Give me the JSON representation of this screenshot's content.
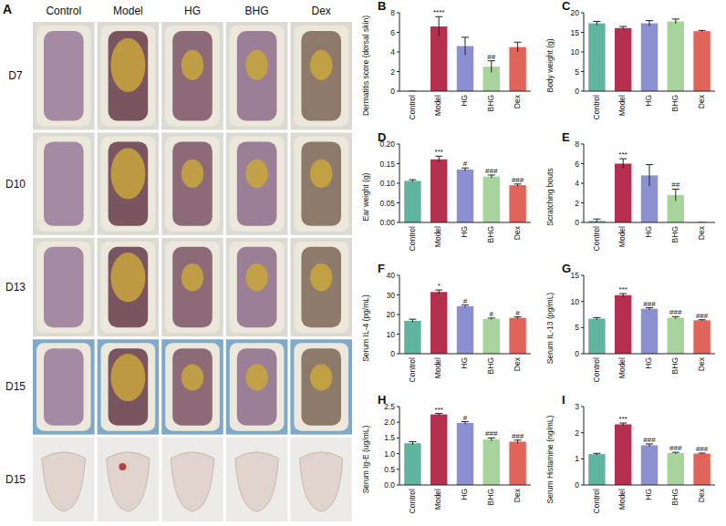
{
  "panel_a": {
    "panel": "A",
    "columns": [
      "Control",
      "Model",
      "HG",
      "BHG",
      "Dex"
    ],
    "rows": [
      "D7",
      "D10",
      "D13",
      "D15",
      "D15"
    ]
  },
  "chart_data": [
    {
      "type": "bar",
      "panel": "B",
      "ylabel": "Dermatitis score (dorsal skin)",
      "categories": [
        "Control",
        "Model",
        "HG",
        "BHG",
        "Dex"
      ],
      "values": [
        0,
        6.6,
        4.6,
        2.5,
        4.5
      ],
      "errors": [
        0,
        1.0,
        0.9,
        0.6,
        0.5
      ],
      "annotations": [
        null,
        "****",
        null,
        "##",
        null
      ],
      "colors": [
        "#5fb5a0",
        "#b5304f",
        "#8c8fd0",
        "#a7d49a",
        "#e0645a"
      ],
      "ylim": [
        0,
        8
      ],
      "yticks": [
        0,
        2,
        4,
        6,
        8
      ]
    },
    {
      "type": "bar",
      "panel": "C",
      "ylabel": "Body weight (g)",
      "categories": [
        "Control",
        "Model",
        "HG",
        "BHG",
        "Dex"
      ],
      "values": [
        17.3,
        16.1,
        17.3,
        17.8,
        15.3
      ],
      "errors": [
        0.5,
        0.4,
        0.7,
        0.6,
        0.2
      ],
      "annotations": [
        null,
        null,
        null,
        null,
        null
      ],
      "colors": [
        "#5fb5a0",
        "#b5304f",
        "#8c8fd0",
        "#a7d49a",
        "#e0645a"
      ],
      "ylim": [
        0,
        20
      ],
      "yticks": [
        0,
        5,
        10,
        15,
        20
      ]
    },
    {
      "type": "bar",
      "panel": "D",
      "ylabel": "Ear weight (g)",
      "categories": [
        "Control",
        "Model",
        "HG",
        "BHG",
        "Dex"
      ],
      "values": [
        0.106,
        0.161,
        0.135,
        0.117,
        0.095
      ],
      "errors": [
        0.003,
        0.008,
        0.004,
        0.004,
        0.003
      ],
      "annotations": [
        null,
        "***",
        "#",
        "###",
        "###"
      ],
      "colors": [
        "#5fb5a0",
        "#b5304f",
        "#8c8fd0",
        "#a7d49a",
        "#e0645a"
      ],
      "ylim": [
        0,
        0.2
      ],
      "yticks": [
        {
          "value": 0,
          "label": "0.00"
        },
        {
          "value": 0.05,
          "label": "0.05"
        },
        {
          "value": 0.1,
          "label": "0.10"
        },
        {
          "value": 0.15,
          "label": "0.15"
        },
        {
          "value": 0.2,
          "label": "0.20"
        }
      ]
    },
    {
      "type": "bar",
      "panel": "E",
      "ylabel": "Scratching bouts",
      "categories": [
        "Control",
        "Model",
        "HG",
        "BHG",
        "Dex"
      ],
      "values": [
        0.15,
        6,
        4.8,
        2.8,
        0
      ],
      "errors": [
        0.2,
        0.5,
        1.1,
        0.6,
        0
      ],
      "annotations": [
        null,
        "***",
        null,
        "##",
        null
      ],
      "colors": [
        "#5fb5a0",
        "#b5304f",
        "#8c8fd0",
        "#a7d49a",
        "#e0645a"
      ],
      "ylim": [
        0,
        8
      ],
      "yticks": [
        0,
        2,
        4,
        6,
        8
      ]
    },
    {
      "type": "bar",
      "panel": "F",
      "ylabel": "Serum IL-4 (pg/mL)",
      "categories": [
        "Control",
        "Model",
        "HG",
        "BHG",
        "Dex"
      ],
      "values": [
        16.8,
        31.5,
        24.2,
        17.8,
        18.3
      ],
      "errors": [
        0.8,
        1.0,
        0.6,
        0.4,
        0.5
      ],
      "annotations": [
        null,
        "*",
        "#",
        "#",
        "#"
      ],
      "colors": [
        "#5fb5a0",
        "#b5304f",
        "#8c8fd0",
        "#a7d49a",
        "#e0645a"
      ],
      "ylim": [
        0,
        40
      ],
      "yticks": [
        0,
        10,
        20,
        30,
        40
      ]
    },
    {
      "type": "bar",
      "panel": "G",
      "ylabel": "Serum IL-13 (pg/mL)",
      "categories": [
        "Control",
        "Model",
        "HG",
        "BHG",
        "Dex"
      ],
      "values": [
        6.7,
        11.2,
        8.6,
        6.9,
        6.4
      ],
      "errors": [
        0.2,
        0.3,
        0.2,
        0.2,
        0.1
      ],
      "annotations": [
        null,
        "***",
        "###",
        "###",
        "###"
      ],
      "colors": [
        "#5fb5a0",
        "#b5304f",
        "#8c8fd0",
        "#a7d49a",
        "#e0645a"
      ],
      "ylim": [
        0,
        15
      ],
      "yticks": [
        0,
        5,
        10,
        15
      ]
    },
    {
      "type": "bar",
      "panel": "H",
      "ylabel": "Serum Ig-E (ug/mL)",
      "categories": [
        "Control",
        "Model",
        "HG",
        "BHG",
        "Dex"
      ],
      "values": [
        1.33,
        2.25,
        1.98,
        1.45,
        1.38
      ],
      "errors": [
        0.05,
        0.03,
        0.04,
        0.05,
        0.05
      ],
      "annotations": [
        null,
        "***",
        "#",
        "###",
        "###"
      ],
      "colors": [
        "#5fb5a0",
        "#b5304f",
        "#8c8fd0",
        "#a7d49a",
        "#e0645a"
      ],
      "ylim": [
        0,
        2.5
      ],
      "yticks": [
        {
          "value": 0,
          "label": "0.0"
        },
        {
          "value": 0.5,
          "label": "0.5"
        },
        {
          "value": 1,
          "label": "1.0"
        },
        {
          "value": 1.5,
          "label": "1.5"
        },
        {
          "value": 2,
          "label": "2.0"
        },
        {
          "value": 2.5,
          "label": "2.5"
        }
      ]
    },
    {
      "type": "bar",
      "panel": "I",
      "ylabel": "Serum Histamine (ng/mL)",
      "categories": [
        "Control",
        "Model",
        "HG",
        "BHG",
        "Dex"
      ],
      "values": [
        1.18,
        2.32,
        1.52,
        1.22,
        1.2
      ],
      "errors": [
        0.03,
        0.05,
        0.05,
        0.03,
        0.02
      ],
      "annotations": [
        null,
        "***",
        "###",
        "###",
        "###"
      ],
      "colors": [
        "#5fb5a0",
        "#b5304f",
        "#8c8fd0",
        "#a7d49a",
        "#e0645a"
      ],
      "ylim": [
        0,
        3
      ],
      "yticks": [
        0,
        1,
        2,
        3
      ]
    }
  ]
}
